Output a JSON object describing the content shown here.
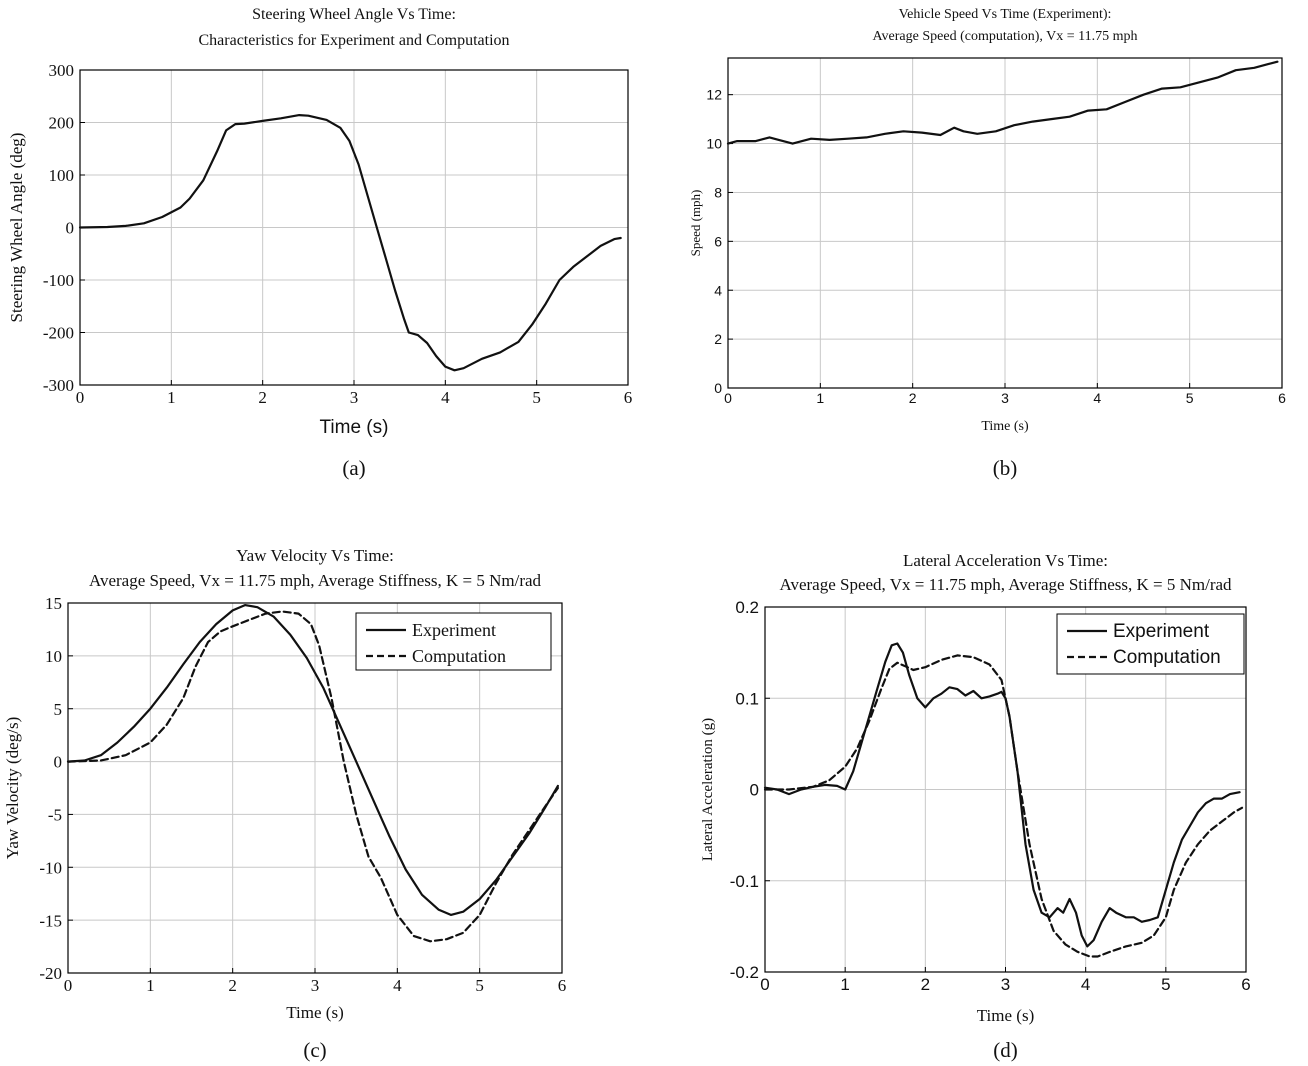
{
  "chart_data": [
    {
      "id": "a",
      "type": "line",
      "panel_label": "(a)",
      "title": [
        "Steering Wheel Angle Vs Time:",
        "Characteristics for Experiment and Computation"
      ],
      "xlabel": "Time (s)",
      "ylabel": "Steering Wheel Angle (deg)",
      "xlim": [
        0,
        6
      ],
      "ylim": [
        -300,
        300
      ],
      "xticks": [
        0,
        1,
        2,
        3,
        4,
        5,
        6
      ],
      "yticks": [
        -300,
        -200,
        -100,
        0,
        100,
        200,
        300
      ],
      "grid": true,
      "series": [
        {
          "dash": "solid",
          "x": [
            0,
            0.3,
            0.5,
            0.7,
            0.9,
            1.1,
            1.2,
            1.35,
            1.5,
            1.6,
            1.7,
            1.8,
            2.0,
            2.2,
            2.4,
            2.5,
            2.7,
            2.85,
            2.95,
            3.05,
            3.15,
            3.25,
            3.35,
            3.45,
            3.55,
            3.6,
            3.7,
            3.8,
            3.9,
            4.0,
            4.1,
            4.2,
            4.4,
            4.6,
            4.8,
            4.95,
            5.1,
            5.25,
            5.4,
            5.55,
            5.7,
            5.85,
            5.92
          ],
          "y": [
            0,
            1,
            3,
            8,
            20,
            38,
            55,
            90,
            145,
            185,
            197,
            198,
            203,
            208,
            214,
            213,
            205,
            190,
            165,
            120,
            60,
            0,
            -60,
            -120,
            -175,
            -200,
            -205,
            -220,
            -245,
            -265,
            -272,
            -268,
            -250,
            -238,
            -218,
            -185,
            -145,
            -100,
            -75,
            -55,
            -35,
            -22,
            -20
          ]
        }
      ]
    },
    {
      "id": "b",
      "type": "line",
      "panel_label": "(b)",
      "title": [
        "Vehicle Speed Vs Time (Experiment):",
        "Average Speed (computation), Vx = 11.75 mph"
      ],
      "xlabel": "Time (s)",
      "ylabel": "Speed (mph)",
      "xlim": [
        0,
        6
      ],
      "ylim": [
        0,
        13.5
      ],
      "xticks": [
        0,
        1,
        2,
        3,
        4,
        5,
        6
      ],
      "yticks": [
        0,
        2,
        4,
        6,
        8,
        10,
        12
      ],
      "grid": true,
      "series": [
        {
          "dash": "solid",
          "x": [
            0,
            0.1,
            0.3,
            0.45,
            0.55,
            0.7,
            0.9,
            1.1,
            1.3,
            1.5,
            1.7,
            1.9,
            2.1,
            2.3,
            2.45,
            2.55,
            2.7,
            2.9,
            3.1,
            3.3,
            3.5,
            3.7,
            3.9,
            4.1,
            4.3,
            4.5,
            4.7,
            4.9,
            5.1,
            5.3,
            5.5,
            5.7,
            5.85,
            5.95
          ],
          "y": [
            10.0,
            10.1,
            10.1,
            10.25,
            10.15,
            10.0,
            10.2,
            10.15,
            10.2,
            10.25,
            10.4,
            10.5,
            10.45,
            10.35,
            10.65,
            10.5,
            10.4,
            10.5,
            10.75,
            10.9,
            11.0,
            11.1,
            11.35,
            11.4,
            11.7,
            12.0,
            12.25,
            12.3,
            12.5,
            12.7,
            13.0,
            13.1,
            13.25,
            13.35
          ]
        }
      ]
    },
    {
      "id": "c",
      "type": "line",
      "panel_label": "(c)",
      "title": [
        "Yaw Velocity Vs Time:",
        "Average Speed, Vx = 11.75 mph, Average Stiffness, K = 5 Nm/rad"
      ],
      "xlabel": "Time (s)",
      "ylabel": "Yaw Velocity (deg/s)",
      "xlim": [
        0,
        6
      ],
      "ylim": [
        -20,
        15
      ],
      "xticks": [
        0,
        1,
        2,
        3,
        4,
        5,
        6
      ],
      "yticks": [
        -20,
        -15,
        -10,
        -5,
        0,
        5,
        10,
        15
      ],
      "grid": true,
      "legend": {
        "position": "top-right"
      },
      "series": [
        {
          "name": "Experiment",
          "dash": "solid",
          "x": [
            0,
            0.2,
            0.4,
            0.6,
            0.8,
            1.0,
            1.2,
            1.4,
            1.6,
            1.8,
            2.0,
            2.15,
            2.3,
            2.5,
            2.7,
            2.9,
            3.1,
            3.3,
            3.5,
            3.7,
            3.9,
            4.1,
            4.3,
            4.5,
            4.65,
            4.8,
            5.0,
            5.2,
            5.4,
            5.6,
            5.8,
            5.95
          ],
          "y": [
            0,
            0.1,
            0.6,
            1.8,
            3.3,
            5.0,
            7.0,
            9.2,
            11.3,
            13.0,
            14.3,
            14.8,
            14.6,
            13.7,
            12.0,
            9.8,
            7.0,
            3.5,
            0,
            -3.5,
            -7.0,
            -10.2,
            -12.6,
            -14.0,
            -14.5,
            -14.2,
            -13.0,
            -11.2,
            -9.0,
            -6.8,
            -4.3,
            -2.3
          ]
        },
        {
          "name": "Computation",
          "dash": "dashed",
          "x": [
            0,
            0.4,
            0.7,
            1.0,
            1.2,
            1.4,
            1.55,
            1.7,
            1.85,
            2.0,
            2.2,
            2.4,
            2.6,
            2.8,
            2.95,
            3.05,
            3.2,
            3.35,
            3.5,
            3.65,
            3.8,
            4.0,
            4.2,
            4.4,
            4.6,
            4.8,
            5.0,
            5.2,
            5.4,
            5.6,
            5.8,
            5.95
          ],
          "y": [
            0,
            0.1,
            0.6,
            1.8,
            3.5,
            6.0,
            9.0,
            11.3,
            12.3,
            12.8,
            13.4,
            14.0,
            14.2,
            14.0,
            13.0,
            11.0,
            6.0,
            0,
            -5.0,
            -9.0,
            -11.0,
            -14.5,
            -16.5,
            -17.0,
            -16.8,
            -16.2,
            -14.5,
            -11.5,
            -8.8,
            -6.5,
            -4.2,
            -2.5
          ]
        }
      ]
    },
    {
      "id": "d",
      "type": "line",
      "panel_label": "(d)",
      "title": [
        "Lateral Acceleration Vs Time:",
        "Average Speed, Vx = 11.75 mph, Average Stiffness, K = 5 Nm/rad"
      ],
      "xlabel": "Time (s)",
      "ylabel": "Lateral Acceleration (g)",
      "xlim": [
        0,
        6
      ],
      "ylim": [
        -0.2,
        0.2
      ],
      "xticks": [
        0,
        1,
        2,
        3,
        4,
        5,
        6
      ],
      "yticks": [
        -0.2,
        -0.1,
        0,
        0.1,
        0.2
      ],
      "ytick_labels": [
        "-0.2",
        "-0.1",
        "0",
        "0.1",
        "0.2"
      ],
      "grid": true,
      "legend": {
        "position": "top-right"
      },
      "series": [
        {
          "name": "Experiment",
          "dash": "solid",
          "x": [
            0,
            0.15,
            0.3,
            0.45,
            0.6,
            0.75,
            0.9,
            1.0,
            1.1,
            1.2,
            1.3,
            1.4,
            1.5,
            1.58,
            1.65,
            1.72,
            1.8,
            1.9,
            2.0,
            2.1,
            2.2,
            2.3,
            2.4,
            2.5,
            2.6,
            2.7,
            2.8,
            2.9,
            2.95,
            3.0,
            3.05,
            3.15,
            3.25,
            3.35,
            3.45,
            3.55,
            3.65,
            3.72,
            3.8,
            3.88,
            3.95,
            4.02,
            4.1,
            4.2,
            4.3,
            4.38,
            4.5,
            4.6,
            4.7,
            4.8,
            4.9,
            5.0,
            5.1,
            5.2,
            5.3,
            5.4,
            5.5,
            5.6,
            5.7,
            5.8,
            5.92
          ],
          "y": [
            0.002,
            0.0,
            -0.005,
            0.0,
            0.003,
            0.005,
            0.004,
            0.0,
            0.02,
            0.05,
            0.08,
            0.11,
            0.14,
            0.158,
            0.16,
            0.15,
            0.125,
            0.1,
            0.09,
            0.1,
            0.105,
            0.112,
            0.11,
            0.103,
            0.108,
            0.1,
            0.102,
            0.105,
            0.107,
            0.1,
            0.08,
            0.02,
            -0.06,
            -0.11,
            -0.135,
            -0.14,
            -0.13,
            -0.135,
            -0.12,
            -0.135,
            -0.16,
            -0.172,
            -0.165,
            -0.145,
            -0.13,
            -0.135,
            -0.14,
            -0.14,
            -0.145,
            -0.143,
            -0.14,
            -0.11,
            -0.08,
            -0.055,
            -0.04,
            -0.025,
            -0.015,
            -0.01,
            -0.01,
            -0.005,
            -0.003
          ]
        },
        {
          "name": "Computation",
          "dash": "dashed",
          "x": [
            0,
            0.3,
            0.6,
            0.8,
            1.0,
            1.15,
            1.3,
            1.45,
            1.55,
            1.65,
            1.75,
            1.85,
            2.0,
            2.2,
            2.4,
            2.6,
            2.8,
            2.95,
            3.05,
            3.15,
            3.3,
            3.45,
            3.6,
            3.75,
            3.9,
            4.05,
            4.15,
            4.3,
            4.5,
            4.7,
            4.85,
            5.0,
            5.1,
            5.25,
            5.4,
            5.55,
            5.7,
            5.85,
            5.95
          ],
          "y": [
            0.0,
            0.0,
            0.003,
            0.01,
            0.025,
            0.045,
            0.075,
            0.11,
            0.132,
            0.139,
            0.135,
            0.131,
            0.134,
            0.142,
            0.147,
            0.145,
            0.137,
            0.12,
            0.08,
            0.02,
            -0.06,
            -0.12,
            -0.155,
            -0.17,
            -0.178,
            -0.183,
            -0.183,
            -0.178,
            -0.172,
            -0.168,
            -0.16,
            -0.14,
            -0.11,
            -0.08,
            -0.06,
            -0.045,
            -0.035,
            -0.025,
            -0.02
          ]
        }
      ]
    }
  ]
}
